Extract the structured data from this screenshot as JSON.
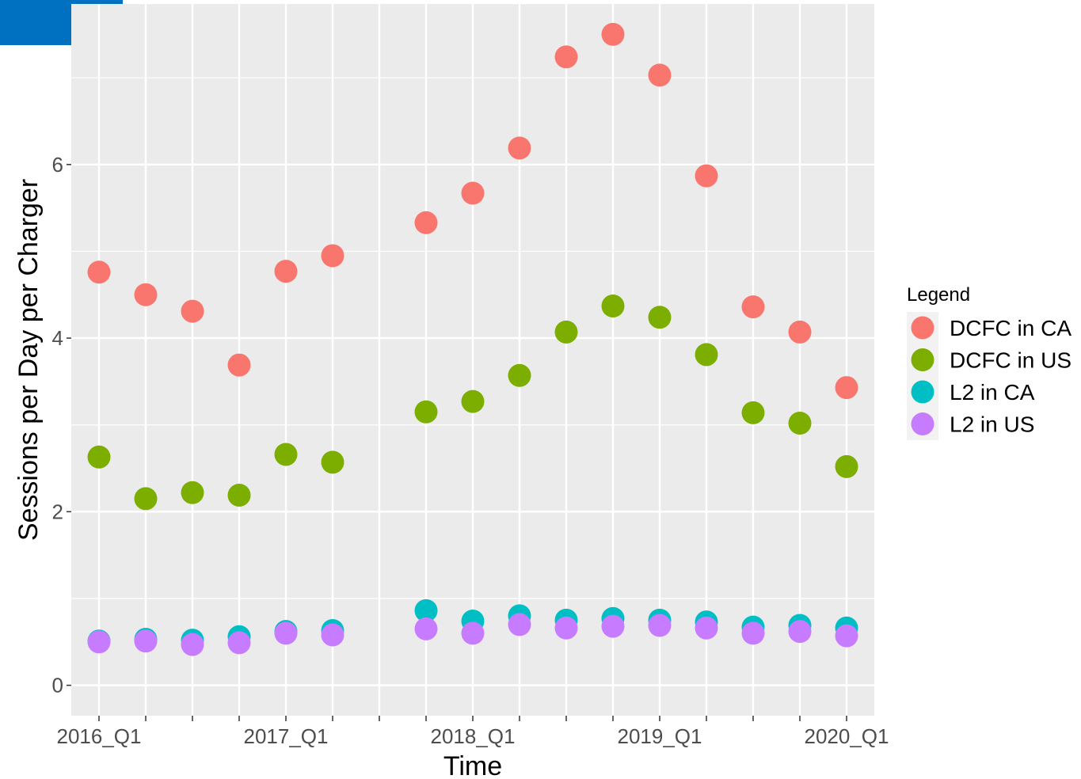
{
  "chart_data": {
    "type": "scatter",
    "title": "",
    "xlabel": "Time",
    "ylabel": "Sessions per Day per Charger",
    "ylim": [
      -0.35,
      7.85
    ],
    "y_ticks": [
      0,
      2,
      4,
      6
    ],
    "x_categories": [
      "2016_Q1",
      "2016_Q2",
      "2016_Q3",
      "2016_Q4",
      "2017_Q1",
      "2017_Q2",
      "2017_Q3",
      "2017_Q4",
      "2018_Q1",
      "2018_Q2",
      "2018_Q3",
      "2018_Q4",
      "2019_Q1",
      "2019_Q2",
      "2019_Q3",
      "2019_Q4",
      "2020_Q1"
    ],
    "x_tick_labels": [
      "2016_Q1",
      "",
      "",
      "",
      "2017_Q1",
      "",
      "",
      "",
      "2018_Q1",
      "",
      "",
      "",
      "2019_Q1",
      "",
      "",
      "",
      "2020_Q1"
    ],
    "grid": true,
    "legend": {
      "title": "Legend",
      "position": "right"
    },
    "series": [
      {
        "name": "DCFC in CA",
        "color": "#F8766D",
        "points": [
          [
            "2016_Q1",
            4.76
          ],
          [
            "2016_Q2",
            4.5
          ],
          [
            "2016_Q3",
            4.31
          ],
          [
            "2016_Q4",
            3.69
          ],
          [
            "2017_Q1",
            4.77
          ],
          [
            "2017_Q2",
            4.95
          ],
          [
            "2017_Q4",
            5.33
          ],
          [
            "2018_Q1",
            5.67
          ],
          [
            "2018_Q2",
            6.19
          ],
          [
            "2018_Q3",
            7.24
          ],
          [
            "2018_Q4",
            7.5
          ],
          [
            "2019_Q1",
            7.03
          ],
          [
            "2019_Q2",
            5.87
          ],
          [
            "2019_Q3",
            4.36
          ],
          [
            "2019_Q4",
            4.07
          ],
          [
            "2020_Q1",
            3.43
          ]
        ]
      },
      {
        "name": "DCFC in US",
        "color": "#7CAE00",
        "points": [
          [
            "2016_Q1",
            2.63
          ],
          [
            "2016_Q2",
            2.15
          ],
          [
            "2016_Q3",
            2.22
          ],
          [
            "2016_Q4",
            2.19
          ],
          [
            "2017_Q1",
            2.66
          ],
          [
            "2017_Q2",
            2.57
          ],
          [
            "2017_Q4",
            3.15
          ],
          [
            "2018_Q1",
            3.27
          ],
          [
            "2018_Q2",
            3.57
          ],
          [
            "2018_Q3",
            4.07
          ],
          [
            "2018_Q4",
            4.37
          ],
          [
            "2019_Q1",
            4.24
          ],
          [
            "2019_Q2",
            3.81
          ],
          [
            "2019_Q3",
            3.14
          ],
          [
            "2019_Q4",
            3.02
          ],
          [
            "2020_Q1",
            2.52
          ]
        ]
      },
      {
        "name": "L2 in CA",
        "color": "#00BFC4",
        "points": [
          [
            "2016_Q1",
            0.51
          ],
          [
            "2016_Q2",
            0.53
          ],
          [
            "2016_Q3",
            0.52
          ],
          [
            "2016_Q4",
            0.56
          ],
          [
            "2017_Q1",
            0.62
          ],
          [
            "2017_Q2",
            0.63
          ],
          [
            "2017_Q4",
            0.86
          ],
          [
            "2018_Q1",
            0.74
          ],
          [
            "2018_Q2",
            0.8
          ],
          [
            "2018_Q3",
            0.75
          ],
          [
            "2018_Q4",
            0.77
          ],
          [
            "2019_Q1",
            0.75
          ],
          [
            "2019_Q2",
            0.73
          ],
          [
            "2019_Q3",
            0.67
          ],
          [
            "2019_Q4",
            0.69
          ],
          [
            "2020_Q1",
            0.66
          ]
        ]
      },
      {
        "name": "L2 in US",
        "color": "#C77CFF",
        "points": [
          [
            "2016_Q1",
            0.5
          ],
          [
            "2016_Q2",
            0.51
          ],
          [
            "2016_Q3",
            0.47
          ],
          [
            "2016_Q4",
            0.49
          ],
          [
            "2017_Q1",
            0.6
          ],
          [
            "2017_Q2",
            0.58
          ],
          [
            "2017_Q4",
            0.65
          ],
          [
            "2018_Q1",
            0.6
          ],
          [
            "2018_Q2",
            0.7
          ],
          [
            "2018_Q3",
            0.66
          ],
          [
            "2018_Q4",
            0.68
          ],
          [
            "2019_Q1",
            0.69
          ],
          [
            "2019_Q2",
            0.66
          ],
          [
            "2019_Q3",
            0.6
          ],
          [
            "2019_Q4",
            0.62
          ],
          [
            "2020_Q1",
            0.57
          ]
        ]
      }
    ]
  }
}
